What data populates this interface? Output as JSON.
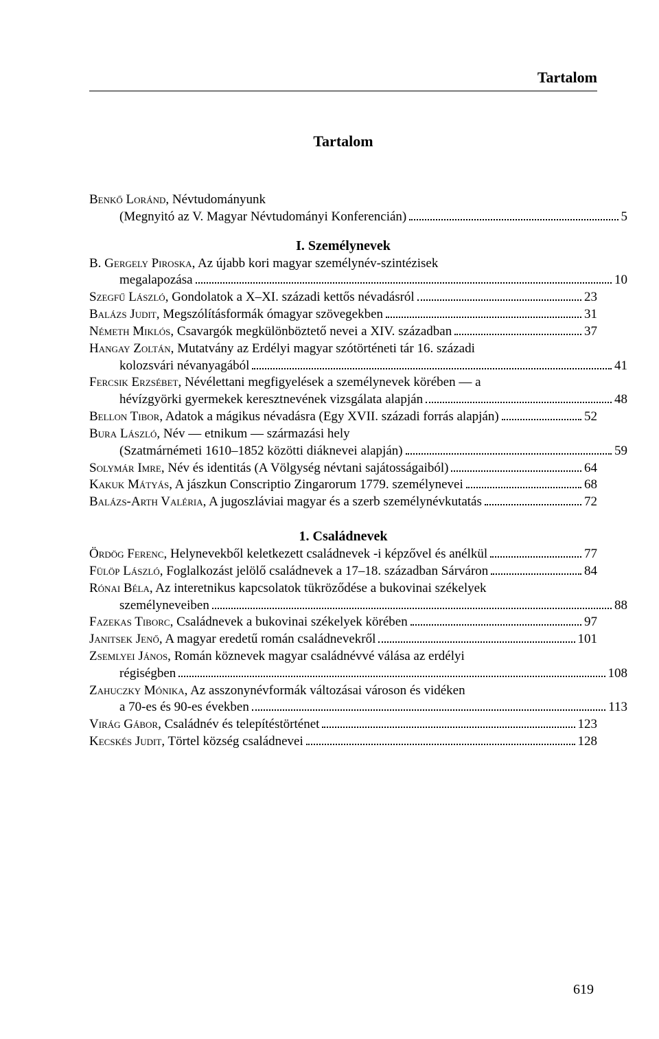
{
  "topRightTitle": "Tartalom",
  "centeredTitle": "Tartalom",
  "sectionHeading1": "I. Személynevek",
  "subsectionHeading1": "1. Családnevek",
  "pageNumber": "619",
  "intro": {
    "author": "Benkő Loránd,",
    "title1": " Névtudományunk",
    "title2": "(Megnyitó az V. Magyar Névtudományi Konferencián)",
    "page": "5"
  },
  "e1": {
    "author": "B. Gergely Piroska,",
    "title1": " Az újabb kori magyar személynév-szintézisek",
    "title2": "megalapozása",
    "page": "10"
  },
  "e2": {
    "author": "Szegfű László,",
    "title": " Gondolatok a X–XI. századi kettős névadásról",
    "page": "23"
  },
  "e3": {
    "author": "Balázs Judit,",
    "title": " Megszólításformák ómagyar szövegekben",
    "page": "31"
  },
  "e4": {
    "author": "Németh Miklós,",
    "title": " Csavargók megkülönböztető nevei a XIV. században",
    "page": "37"
  },
  "e5": {
    "author": "Hangay Zoltán,",
    "title1": " Mutatvány az Erdélyi magyar szótörténeti tár 16. századi",
    "title2": "kolozsvári névanyagából",
    "page": "41"
  },
  "e6": {
    "author": "Fercsik Erzsébet,",
    "title1": " Névélettani megfigyelések a személynevek körében — a",
    "title2": "hévízgyörki gyermekek keresztnevének vizsgálata alapján",
    "page": "48"
  },
  "e7": {
    "author": "Bellon Tibor,",
    "title": " Adatok a mágikus névadásra (Egy XVII. századi forrás alapján)",
    "page": "52"
  },
  "e8": {
    "author": "Bura László,",
    "title1": " Név — etnikum — származási hely",
    "title2": "(Szatmárnémeti 1610–1852 közötti diáknevei alapján)",
    "page": "59"
  },
  "e9": {
    "author": "Solymár Imre,",
    "title": " Név és identitás (A Völgység névtani sajátosságaiból)",
    "page": "64"
  },
  "e10": {
    "author": "Kakuk Mátyás,",
    "title": " A jászkun Conscriptio Zingarorum 1779. személynevei",
    "page": "68"
  },
  "e11": {
    "author": "Balázs-Arth Valéria,",
    "title": " A jugoszláviai magyar és a szerb személynévkutatás",
    "page": "72"
  },
  "s1": {
    "author": "Ördög Ferenc,",
    "title": " Helynevekből keletkezett családnevek -i képzővel és anélkül",
    "page": "77"
  },
  "s2": {
    "author": "Fülöp László,",
    "title": " Foglalkozást jelölő családnevek a 17–18. században Sárváron",
    "page": "84"
  },
  "s3": {
    "author": "Rónai Béla,",
    "title1": " Az interetnikus kapcsolatok tükröződése a bukovinai székelyek",
    "title2": "személyneveiben",
    "page": "88"
  },
  "s4": {
    "author": "Fazekas Tiborc,",
    "title": " Családnevek a bukovinai székelyek körében",
    "page": "97"
  },
  "s5": {
    "author": "Janitsek Jenő,",
    "title": " A magyar eredetű román családnevekről",
    "page": "101"
  },
  "s6": {
    "author": "Zsemlyei János,",
    "title1": " Román köznevek magyar családnévvé válása az erdélyi",
    "title2": "régiségben",
    "page": "108"
  },
  "s7": {
    "author": "Zahuczky Mónika,",
    "title1": " Az asszonynévformák változásai városon és vidéken",
    "title2": "a 70-es és 90-es években",
    "page": "113"
  },
  "s8": {
    "author": "Virág Gábor,",
    "title": " Családnév és telepítéstörténet",
    "page": "123"
  },
  "s9": {
    "author": "Kecskés Judit,",
    "title": " Törtel község családnevei",
    "page": "128"
  }
}
